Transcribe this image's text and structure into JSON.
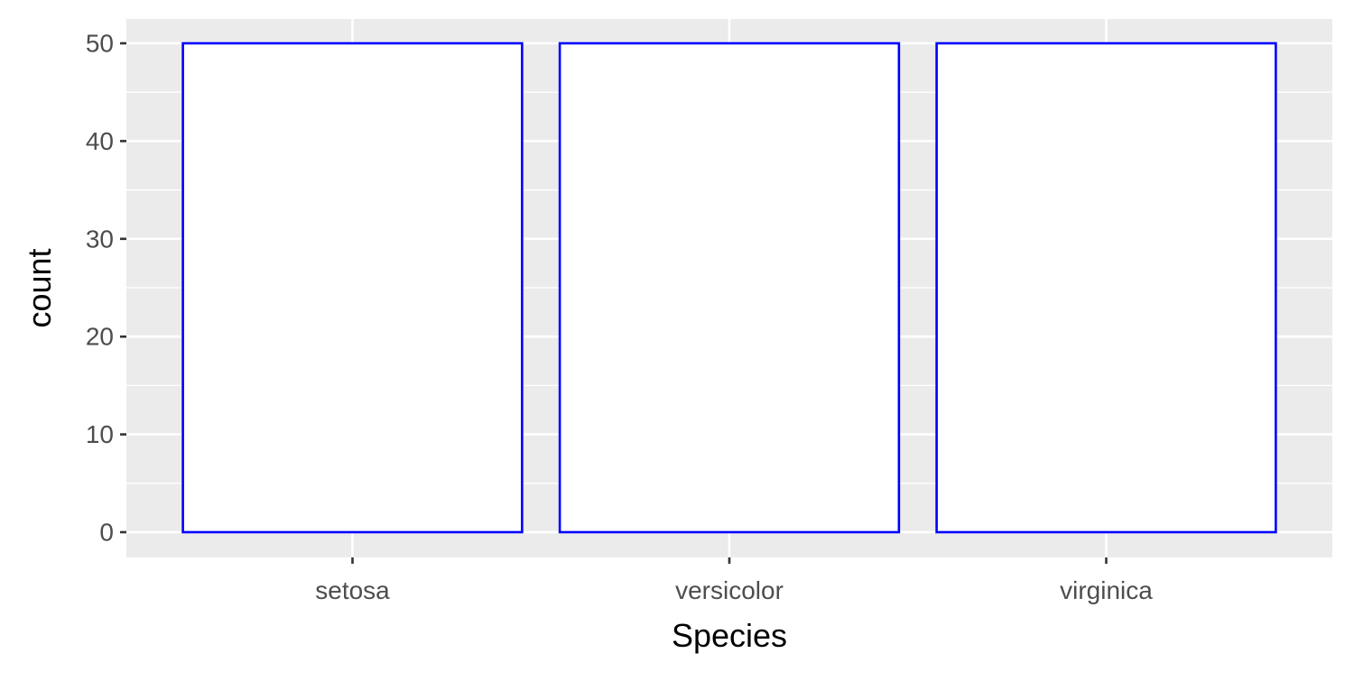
{
  "chart_data": {
    "type": "bar",
    "categories": [
      "setosa",
      "versicolor",
      "virginica"
    ],
    "values": [
      50,
      50,
      50
    ],
    "xlabel": "Species",
    "ylabel": "count",
    "ylim": [
      0,
      52.5
    ],
    "yticks": [
      0,
      10,
      20,
      30,
      40,
      50
    ],
    "grid": true,
    "legend": "none",
    "colors": {
      "panel_background": "#EBEBEB",
      "grid": "#FFFFFF",
      "bar_fill": "#FFFFFF",
      "bar_outline": "#0000FF",
      "tick_label": "#4D4D4D",
      "axis_title": "#000000",
      "tick_mark": "#333333"
    }
  }
}
